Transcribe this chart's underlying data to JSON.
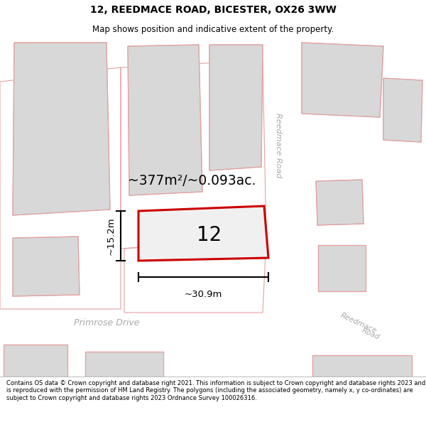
{
  "title_line1": "12, REEDMACE ROAD, BICESTER, OX26 3WW",
  "title_line2": "Map shows position and indicative extent of the property.",
  "footer_text": "Contains OS data © Crown copyright and database right 2021. This information is subject to Crown copyright and database rights 2023 and is reproduced with the permission of HM Land Registry. The polygons (including the associated geometry, namely x, y co-ordinates) are subject to Crown copyright and database rights 2023 Ordnance Survey 100026316.",
  "area_text": "~377m²/~0.093ac.",
  "width_label": "~30.9m",
  "height_label": "~15.2m",
  "number_label": "12",
  "street_reedmace": "Reedmace Road",
  "street_reedmace2": "Reedmace",
  "street_road2": "Road",
  "street_primrose": "Primrose Drive",
  "bg_color": "#f5f5f5",
  "plot_outline_color": "#dd0000",
  "building_fill": "#d8d8d8",
  "building_edge": "#c0c0c0",
  "pink_line_color": "#e8a0a0",
  "road_fill": "#ffffff"
}
